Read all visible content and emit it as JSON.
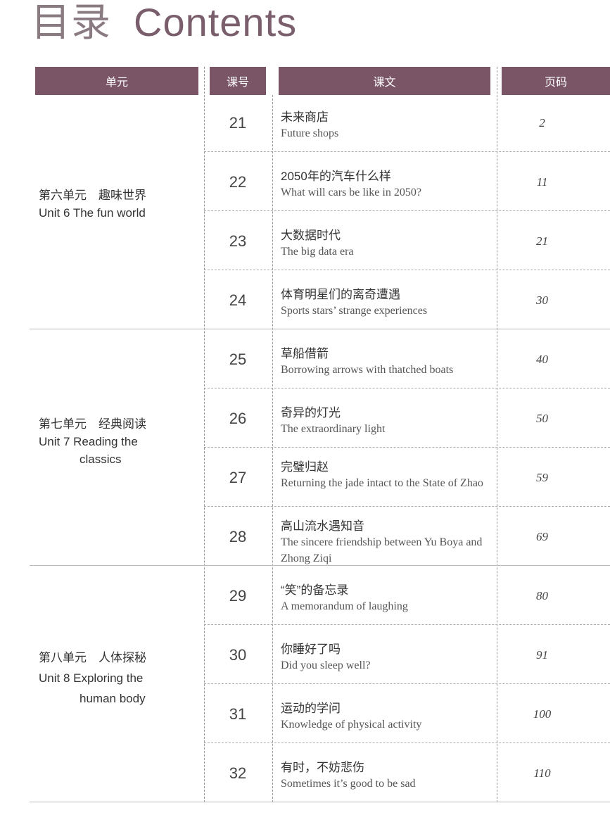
{
  "title": {
    "zh": "目录",
    "en": "Contents"
  },
  "headers": {
    "unit": "单元",
    "number": "课号",
    "lesson": "课文",
    "page": "页码"
  },
  "colors": {
    "header_bg": "#7a5565",
    "title": "#7a5e6c"
  },
  "units": [
    {
      "zh": "第六单元　趣味世界",
      "en_line1": "Unit 6 The fun world",
      "en_line2": ""
    },
    {
      "zh": "第七单元　经典阅读",
      "en_line1": "Unit 7 Reading the",
      "en_line2": "classics"
    },
    {
      "zh": "第八单元　人体探秘",
      "en_line1": "Unit 8 Exploring the",
      "en_line2": "human body"
    }
  ],
  "lessons": [
    {
      "num": "21",
      "zh": "未来商店",
      "en": "Future shops",
      "page": "2"
    },
    {
      "num": "22",
      "zh": "2050年的汽车什么样",
      "en": "What will cars be like in 2050?",
      "page": "11"
    },
    {
      "num": "23",
      "zh": "大数据时代",
      "en": "The big data era",
      "page": "21"
    },
    {
      "num": "24",
      "zh": "体育明星们的离奇遭遇",
      "en": "Sports stars’ strange experiences",
      "page": "30"
    },
    {
      "num": "25",
      "zh": "草船借箭",
      "en": "Borrowing arrows with thatched boats",
      "page": "40"
    },
    {
      "num": "26",
      "zh": "奇异的灯光",
      "en": "The extraordinary light",
      "page": "50"
    },
    {
      "num": "27",
      "zh": "完璧归赵",
      "en": "Returning the jade intact to the State of Zhao",
      "page": "59"
    },
    {
      "num": "28",
      "zh": "高山流水遇知音",
      "en": "The sincere friendship between Yu Boya and Zhong Ziqi",
      "page": "69"
    },
    {
      "num": "29",
      "zh": "“笑”的备忘录",
      "en": "A memorandum of laughing",
      "page": "80"
    },
    {
      "num": "30",
      "zh": "你睡好了吗",
      "en": "Did you sleep well?",
      "page": "91"
    },
    {
      "num": "31",
      "zh": "运动的学问",
      "en": "Knowledge of physical activity",
      "page": "100"
    },
    {
      "num": "32",
      "zh": "有时，不妨悲伤",
      "en": "Sometimes it’s good to be sad",
      "page": "110"
    }
  ]
}
